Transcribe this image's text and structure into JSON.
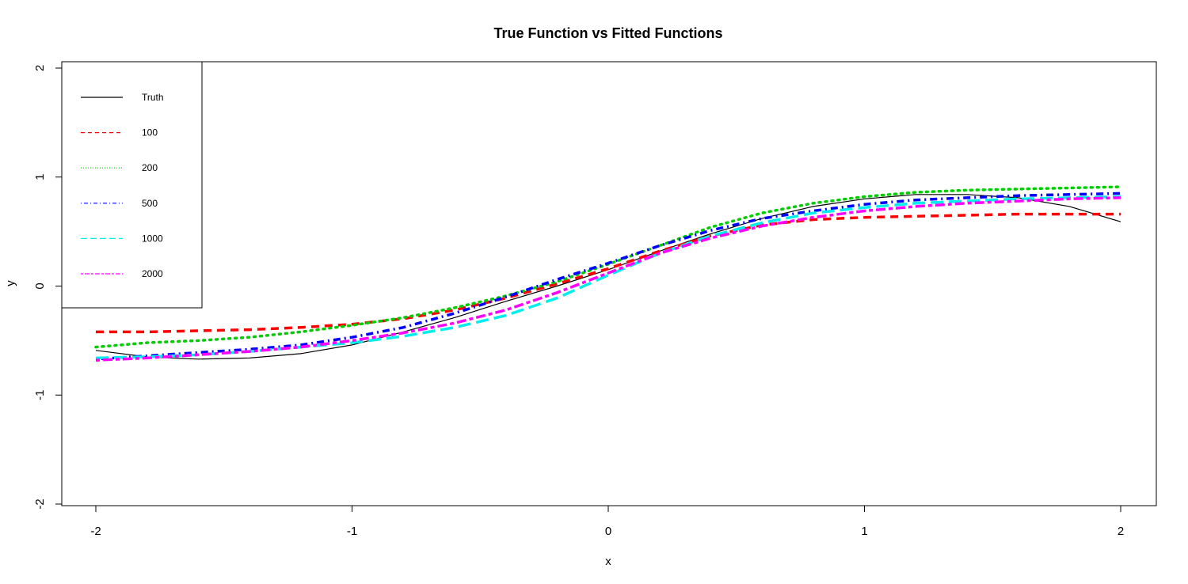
{
  "chart_data": {
    "type": "line",
    "title": "True Function vs Fitted Functions",
    "xlabel": "x",
    "ylabel": "y",
    "xlim": [
      -2,
      2
    ],
    "ylim": [
      -2,
      2
    ],
    "xticks": [
      "-2",
      "-1",
      "0",
      "1",
      "2"
    ],
    "yticks": [
      "-2",
      "-1",
      "0",
      "1",
      "2"
    ],
    "grid": false,
    "legend_position": "top-left",
    "x": [
      -2,
      -1.8,
      -1.6,
      -1.4,
      -1.2,
      -1,
      -0.8,
      -0.6,
      -0.4,
      -0.2,
      0,
      0.2,
      0.4,
      0.6,
      0.8,
      1,
      1.2,
      1.4,
      1.6,
      1.8,
      2
    ],
    "series": [
      {
        "name": "Truth",
        "color": "#000000",
        "dash": "solid",
        "width": 1.2,
        "values": [
          -0.59,
          -0.65,
          -0.67,
          -0.66,
          -0.62,
          -0.54,
          -0.42,
          -0.29,
          -0.14,
          0.0,
          0.15,
          0.32,
          0.48,
          0.62,
          0.73,
          0.8,
          0.84,
          0.84,
          0.81,
          0.73,
          0.59
        ]
      },
      {
        "name": "100",
        "color": "#ff0000",
        "dash": "dashed",
        "width": 3.5,
        "values": [
          -0.42,
          -0.42,
          -0.41,
          -0.4,
          -0.38,
          -0.35,
          -0.3,
          -0.22,
          -0.11,
          0.02,
          0.16,
          0.32,
          0.46,
          0.56,
          0.61,
          0.63,
          0.64,
          0.65,
          0.66,
          0.66,
          0.66
        ]
      },
      {
        "name": "200",
        "color": "#00cd00",
        "dash": "dotted",
        "width": 3.5,
        "values": [
          -0.56,
          -0.52,
          -0.5,
          -0.47,
          -0.42,
          -0.36,
          -0.29,
          -0.2,
          -0.09,
          0.04,
          0.2,
          0.37,
          0.54,
          0.67,
          0.76,
          0.82,
          0.86,
          0.88,
          0.89,
          0.9,
          0.91
        ]
      },
      {
        "name": "500",
        "color": "#0000ff",
        "dash": "dotdash",
        "width": 3.5,
        "values": [
          -0.67,
          -0.64,
          -0.61,
          -0.58,
          -0.54,
          -0.47,
          -0.38,
          -0.25,
          -0.1,
          0.06,
          0.21,
          0.37,
          0.51,
          0.62,
          0.69,
          0.75,
          0.79,
          0.81,
          0.83,
          0.84,
          0.85
        ]
      },
      {
        "name": "1000",
        "color": "#00eeee",
        "dash": "longdash",
        "width": 3.5,
        "values": [
          -0.66,
          -0.65,
          -0.63,
          -0.6,
          -0.56,
          -0.52,
          -0.46,
          -0.38,
          -0.27,
          -0.11,
          0.1,
          0.3,
          0.46,
          0.58,
          0.67,
          0.72,
          0.76,
          0.78,
          0.8,
          0.81,
          0.82
        ]
      },
      {
        "name": "2000",
        "color": "#ff00ff",
        "dash": "twodash",
        "width": 3.5,
        "values": [
          -0.68,
          -0.66,
          -0.63,
          -0.6,
          -0.56,
          -0.5,
          -0.43,
          -0.34,
          -0.22,
          -0.06,
          0.12,
          0.3,
          0.44,
          0.55,
          0.63,
          0.69,
          0.73,
          0.76,
          0.78,
          0.8,
          0.81
        ]
      }
    ]
  }
}
